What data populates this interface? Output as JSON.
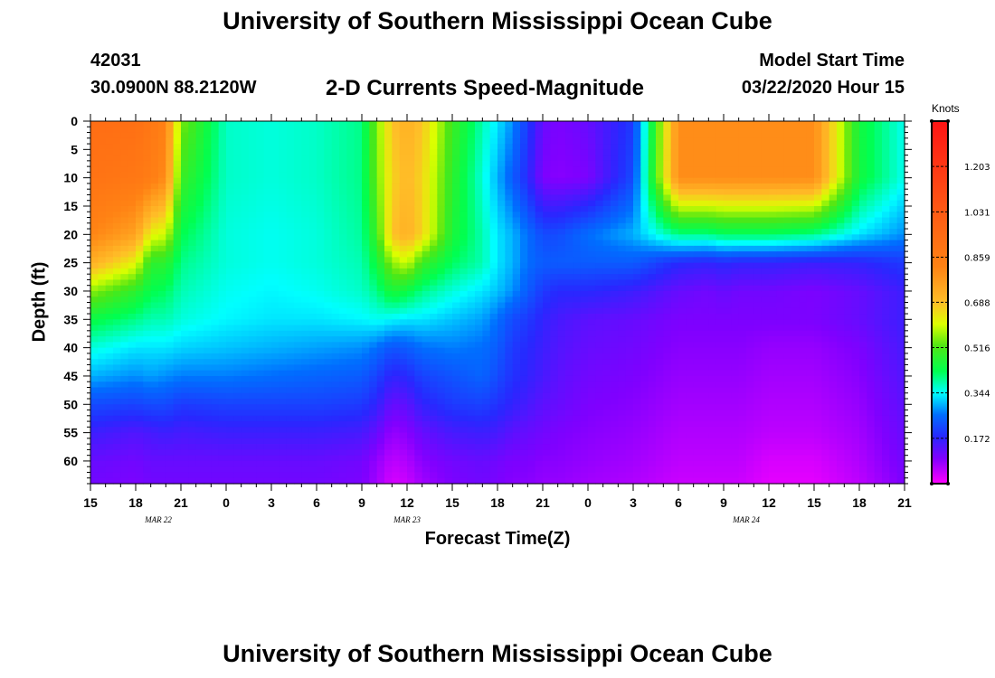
{
  "header": {
    "title": "University of Southern Mississippi Ocean Cube",
    "station": "42031",
    "coords": "30.0900N 88.2120W",
    "subtitle": "2-D Currents Speed-Magnitude",
    "model_label": "Model Start Time",
    "model_time": "03/22/2020 Hour 15"
  },
  "footer": {
    "title": "University of Southern Mississippi Ocean Cube"
  },
  "chart_data": {
    "type": "heatmap",
    "title": "2-D Currents Speed-Magnitude",
    "xlabel": "Forecast Time(Z)",
    "ylabel": "Depth (ft)",
    "x_ticks": [
      "15",
      "18",
      "21",
      "0",
      "3",
      "6",
      "9",
      "12",
      "15",
      "18",
      "21",
      "0",
      "3",
      "6",
      "9",
      "12",
      "15",
      "18",
      "21"
    ],
    "x_dates": [
      {
        "label": "MAR 22",
        "tick_index": 1.5
      },
      {
        "label": "MAR 23",
        "tick_index": 7
      },
      {
        "label": "MAR 24",
        "tick_index": 14.5
      }
    ],
    "x_range_hours": [
      0,
      54
    ],
    "y_ticks": [
      0,
      5,
      10,
      15,
      20,
      25,
      30,
      35,
      40,
      45,
      50,
      55,
      60
    ],
    "ylim": [
      0,
      64
    ],
    "colorbar": {
      "unit": "Knots",
      "tick_labels": [
        "1.203",
        "1.031",
        "0.859",
        "0.688",
        "0.516",
        "0.344",
        "0.172"
      ],
      "range": [
        0.0,
        1.375
      ]
    },
    "grid_hours": [
      0,
      3,
      4,
      5,
      6,
      9,
      12,
      15,
      18,
      19,
      20,
      21,
      22,
      24,
      26,
      27,
      28,
      29,
      30,
      31,
      33,
      36,
      39,
      41,
      42,
      43,
      45,
      48,
      51,
      54
    ],
    "grid_depths": [
      0,
      10,
      20,
      25,
      30,
      35,
      40,
      45,
      50,
      55,
      60,
      64
    ],
    "speed_knots": [
      [
        0.93,
        0.92,
        0.88,
        0.83,
        0.55,
        0.37,
        0.36,
        0.37,
        0.4,
        0.55,
        0.68,
        0.72,
        0.68,
        0.5,
        0.38,
        0.33,
        0.28,
        0.2,
        0.12,
        0.1,
        0.12,
        0.2,
        0.8,
        0.8,
        0.8,
        0.8,
        0.8,
        0.8,
        0.45,
        0.35
      ],
      [
        0.9,
        0.88,
        0.85,
        0.8,
        0.5,
        0.37,
        0.36,
        0.37,
        0.4,
        0.54,
        0.66,
        0.7,
        0.66,
        0.48,
        0.36,
        0.3,
        0.24,
        0.18,
        0.1,
        0.09,
        0.1,
        0.22,
        0.8,
        0.8,
        0.8,
        0.8,
        0.8,
        0.8,
        0.45,
        0.35
      ],
      [
        0.82,
        0.75,
        0.62,
        0.6,
        0.43,
        0.36,
        0.35,
        0.36,
        0.39,
        0.5,
        0.68,
        0.72,
        0.66,
        0.46,
        0.38,
        0.33,
        0.3,
        0.26,
        0.22,
        0.22,
        0.26,
        0.3,
        0.4,
        0.4,
        0.42,
        0.42,
        0.42,
        0.4,
        0.33,
        0.28
      ],
      [
        0.72,
        0.62,
        0.48,
        0.48,
        0.4,
        0.36,
        0.35,
        0.36,
        0.38,
        0.45,
        0.56,
        0.6,
        0.5,
        0.42,
        0.38,
        0.33,
        0.3,
        0.26,
        0.24,
        0.24,
        0.24,
        0.24,
        0.18,
        0.17,
        0.18,
        0.17,
        0.17,
        0.16,
        0.17,
        0.2
      ],
      [
        0.56,
        0.48,
        0.43,
        0.42,
        0.38,
        0.35,
        0.34,
        0.35,
        0.37,
        0.4,
        0.46,
        0.44,
        0.4,
        0.36,
        0.33,
        0.31,
        0.28,
        0.24,
        0.2,
        0.18,
        0.18,
        0.16,
        0.12,
        0.11,
        0.12,
        0.11,
        0.11,
        0.1,
        0.12,
        0.16
      ],
      [
        0.44,
        0.4,
        0.38,
        0.38,
        0.36,
        0.34,
        0.33,
        0.33,
        0.34,
        0.35,
        0.34,
        0.33,
        0.33,
        0.31,
        0.29,
        0.26,
        0.22,
        0.2,
        0.17,
        0.15,
        0.13,
        0.12,
        0.1,
        0.1,
        0.1,
        0.1,
        0.1,
        0.1,
        0.12,
        0.16
      ],
      [
        0.36,
        0.33,
        0.33,
        0.33,
        0.32,
        0.31,
        0.3,
        0.29,
        0.28,
        0.26,
        0.23,
        0.24,
        0.26,
        0.27,
        0.26,
        0.24,
        0.2,
        0.18,
        0.16,
        0.14,
        0.12,
        0.11,
        0.09,
        0.09,
        0.09,
        0.09,
        0.08,
        0.08,
        0.1,
        0.15
      ],
      [
        0.3,
        0.28,
        0.29,
        0.28,
        0.27,
        0.27,
        0.26,
        0.25,
        0.24,
        0.21,
        0.17,
        0.18,
        0.21,
        0.23,
        0.25,
        0.22,
        0.19,
        0.17,
        0.15,
        0.13,
        0.11,
        0.1,
        0.08,
        0.08,
        0.08,
        0.08,
        0.07,
        0.07,
        0.09,
        0.14
      ],
      [
        0.22,
        0.21,
        0.22,
        0.22,
        0.2,
        0.21,
        0.21,
        0.21,
        0.2,
        0.17,
        0.12,
        0.13,
        0.17,
        0.2,
        0.21,
        0.19,
        0.17,
        0.15,
        0.13,
        0.12,
        0.1,
        0.09,
        0.07,
        0.07,
        0.07,
        0.07,
        0.06,
        0.06,
        0.08,
        0.13
      ],
      [
        0.16,
        0.14,
        0.15,
        0.16,
        0.15,
        0.16,
        0.16,
        0.16,
        0.15,
        0.12,
        0.08,
        0.09,
        0.12,
        0.15,
        0.16,
        0.15,
        0.13,
        0.12,
        0.11,
        0.1,
        0.09,
        0.08,
        0.06,
        0.06,
        0.06,
        0.06,
        0.05,
        0.05,
        0.07,
        0.12
      ],
      [
        0.12,
        0.11,
        0.12,
        0.12,
        0.12,
        0.12,
        0.12,
        0.12,
        0.11,
        0.08,
        0.05,
        0.06,
        0.09,
        0.11,
        0.12,
        0.11,
        0.1,
        0.1,
        0.09,
        0.09,
        0.08,
        0.07,
        0.05,
        0.05,
        0.05,
        0.05,
        0.03,
        0.03,
        0.06,
        0.11
      ],
      [
        0.11,
        0.1,
        0.11,
        0.11,
        0.11,
        0.11,
        0.11,
        0.11,
        0.1,
        0.07,
        0.03,
        0.04,
        0.07,
        0.1,
        0.11,
        0.1,
        0.09,
        0.09,
        0.08,
        0.08,
        0.07,
        0.06,
        0.04,
        0.04,
        0.04,
        0.04,
        0.02,
        0.02,
        0.05,
        0.1
      ]
    ]
  }
}
